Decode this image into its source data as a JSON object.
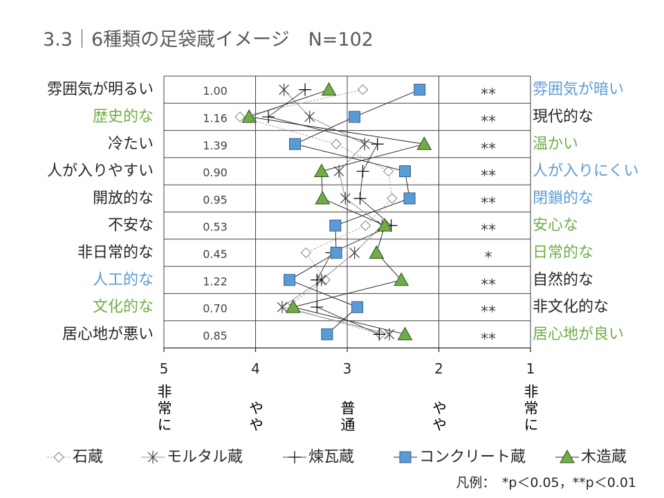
{
  "chart_data": {
    "type": "line",
    "title": "3.3｜6種類の足袋蔵イメージ　N=102",
    "grid": true,
    "legend_position": "bottom",
    "x_axis": {
      "range": [
        5,
        1
      ],
      "reversed": true,
      "ticks": [
        5,
        4,
        3,
        2,
        1
      ],
      "tick_labels": [
        "5",
        "4",
        "3",
        "2",
        "1"
      ],
      "scale_labels": [
        "非常に",
        "やや",
        "普通",
        "やや",
        "非常に"
      ]
    },
    "items": [
      {
        "left": "雰囲気が明るい",
        "left_color": "#262626",
        "right": "雰囲気が暗い",
        "right_color": "#5B9BD5",
        "value": "1.00",
        "significance": "**"
      },
      {
        "left": "歴史的な",
        "left_color": "#70AD47",
        "right": "現代的な",
        "right_color": "#262626",
        "value": "1.16",
        "significance": "**"
      },
      {
        "left": "冷たい",
        "left_color": "#262626",
        "right": "温かい",
        "right_color": "#70AD47",
        "value": "1.39",
        "significance": "**"
      },
      {
        "left": "人が入りやすい",
        "left_color": "#262626",
        "right": "人が入りにくい",
        "right_color": "#5B9BD5",
        "value": "0.90",
        "significance": "**"
      },
      {
        "left": "開放的な",
        "left_color": "#262626",
        "right": "閉鎖的な",
        "right_color": "#5B9BD5",
        "value": "0.95",
        "significance": "**"
      },
      {
        "left": "不安な",
        "left_color": "#262626",
        "right": "安心な",
        "right_color": "#70AD47",
        "value": "0.53",
        "significance": "**"
      },
      {
        "left": "非日常的な",
        "left_color": "#262626",
        "right": "日常的な",
        "right_color": "#70AD47",
        "value": "0.45",
        "significance": "*"
      },
      {
        "left": "人工的な",
        "left_color": "#5B9BD5",
        "right": "自然的な",
        "right_color": "#262626",
        "value": "1.22",
        "significance": "**"
      },
      {
        "left": "文化的な",
        "left_color": "#70AD47",
        "right": "非文化的な",
        "right_color": "#262626",
        "value": "0.70",
        "significance": "**"
      },
      {
        "left": "居心地が悪い",
        "left_color": "#262626",
        "right": "居心地が良い",
        "right_color": "#70AD47",
        "value": "0.85",
        "significance": "**"
      }
    ],
    "series": [
      {
        "name": "石蔵",
        "marker": "diamond",
        "line_style": "dashed",
        "line_color": "#A6A6A6",
        "marker_color": "#FFFFFF",
        "marker_border": "#7F7F7F",
        "values": [
          2.83,
          4.17,
          3.12,
          2.55,
          2.51,
          2.8,
          3.45,
          3.24,
          3.66,
          2.64
        ]
      },
      {
        "name": "モルタル蔵",
        "marker": "asterisk",
        "line_style": "solid",
        "line_color": "#8C8C8C",
        "marker_color": "#404040",
        "marker_border": "#404040",
        "values": [
          3.69,
          3.41,
          2.81,
          3.09,
          3.02,
          2.62,
          2.92,
          3.28,
          3.71,
          2.54
        ]
      },
      {
        "name": "煉瓦蔵",
        "marker": "plus",
        "line_style": "solid",
        "line_color": "#404040",
        "marker_color": "#000000",
        "marker_border": "#000000",
        "values": [
          3.46,
          3.86,
          2.67,
          2.83,
          2.86,
          2.52,
          3.17,
          3.33,
          3.33,
          2.65
        ]
      },
      {
        "name": "コンクリート蔵",
        "marker": "square",
        "line_style": "solid",
        "line_color": "#262626",
        "marker_color": "#5B9BD5",
        "marker_border": "#2E5E8E",
        "values": [
          2.21,
          2.92,
          3.57,
          2.37,
          2.32,
          3.13,
          3.12,
          3.63,
          2.89,
          3.22
        ]
      },
      {
        "name": "木造蔵",
        "marker": "triangle",
        "line_style": "solid",
        "line_color": "#262626",
        "marker_color": "#70AD47",
        "marker_border": "#2F4D1E",
        "values": [
          3.2,
          4.07,
          2.16,
          3.28,
          3.27,
          2.59,
          2.68,
          2.41,
          3.59,
          2.37
        ]
      }
    ],
    "footnote": "凡例：　*p＜0.05，**p＜0.01"
  }
}
